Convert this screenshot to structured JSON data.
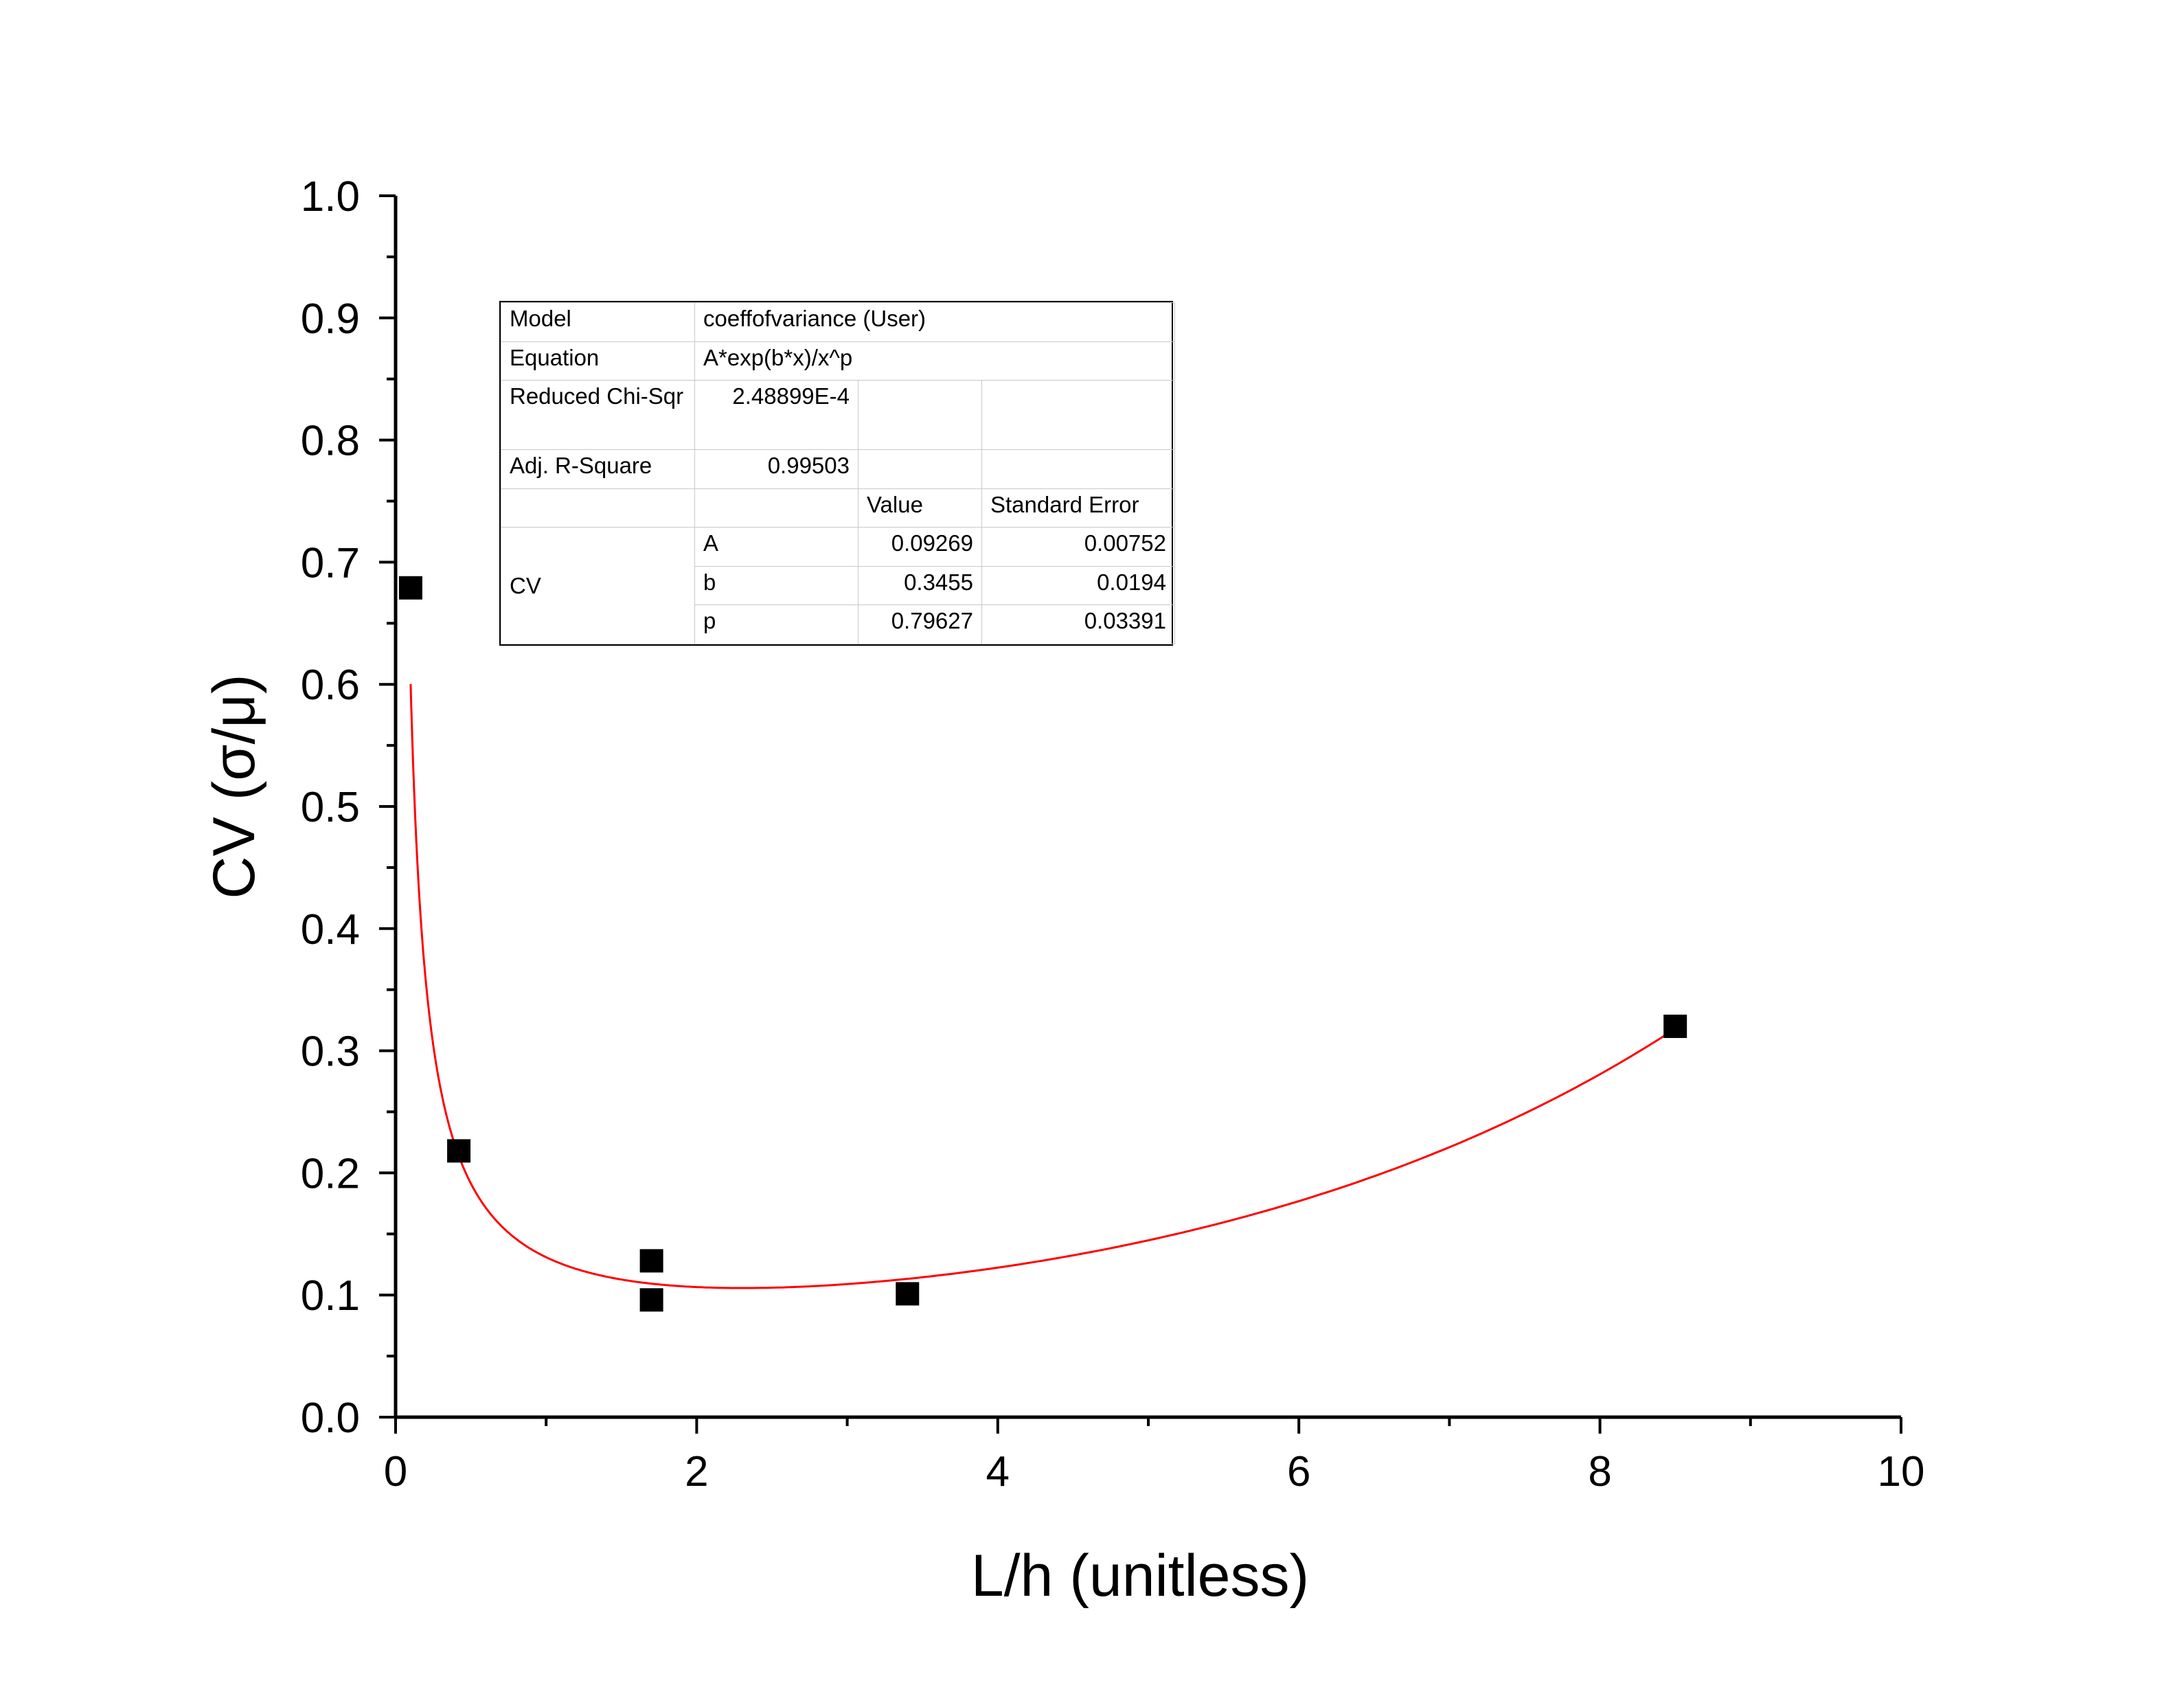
{
  "chart_data": {
    "type": "scatter",
    "xlabel": "L/h (unitless)",
    "ylabel": "CV (σ/μ)",
    "xlim": [
      0,
      10
    ],
    "ylim": [
      0.0,
      1.0
    ],
    "x_ticks": [
      "0",
      "2",
      "4",
      "6",
      "8",
      "10"
    ],
    "y_ticks": [
      "0.0",
      "0.1",
      "0.2",
      "0.3",
      "0.4",
      "0.5",
      "0.6",
      "0.7",
      "0.8",
      "0.9",
      "1.0"
    ],
    "grid": false,
    "series": [
      {
        "marker": "square",
        "color": "#000000",
        "x": [
          0.1,
          0.42,
          1.7,
          1.7,
          3.4,
          8.5
        ],
        "y": [
          0.679,
          0.218,
          0.128,
          0.096,
          0.101,
          0.32
        ]
      }
    ],
    "fit": {
      "equation": "A*exp(b*x)/x^p",
      "A": 0.09269,
      "b": 0.3455,
      "p": 0.79627,
      "x_range": [
        0.1,
        8.5
      ],
      "color": "#ff0000"
    }
  },
  "fit_table": {
    "model_label": "Model",
    "model_value": "coeffofvariance (User)",
    "equation_label": "Equation",
    "equation_value": "A*exp(b*x)/x^p",
    "chisqr_label": "Reduced Chi-Sqr",
    "chisqr_value": "2.48899E-4",
    "r2_label": "Adj. R-Square",
    "r2_value": "0.99503",
    "value_header": "Value",
    "error_header": "Standard Error",
    "group_label": "CV",
    "params": [
      {
        "name": "A",
        "value": "0.09269",
        "error": "0.00752"
      },
      {
        "name": "b",
        "value": "0.3455",
        "error": "0.0194"
      },
      {
        "name": "p",
        "value": "0.79627",
        "error": "0.03391"
      }
    ]
  }
}
